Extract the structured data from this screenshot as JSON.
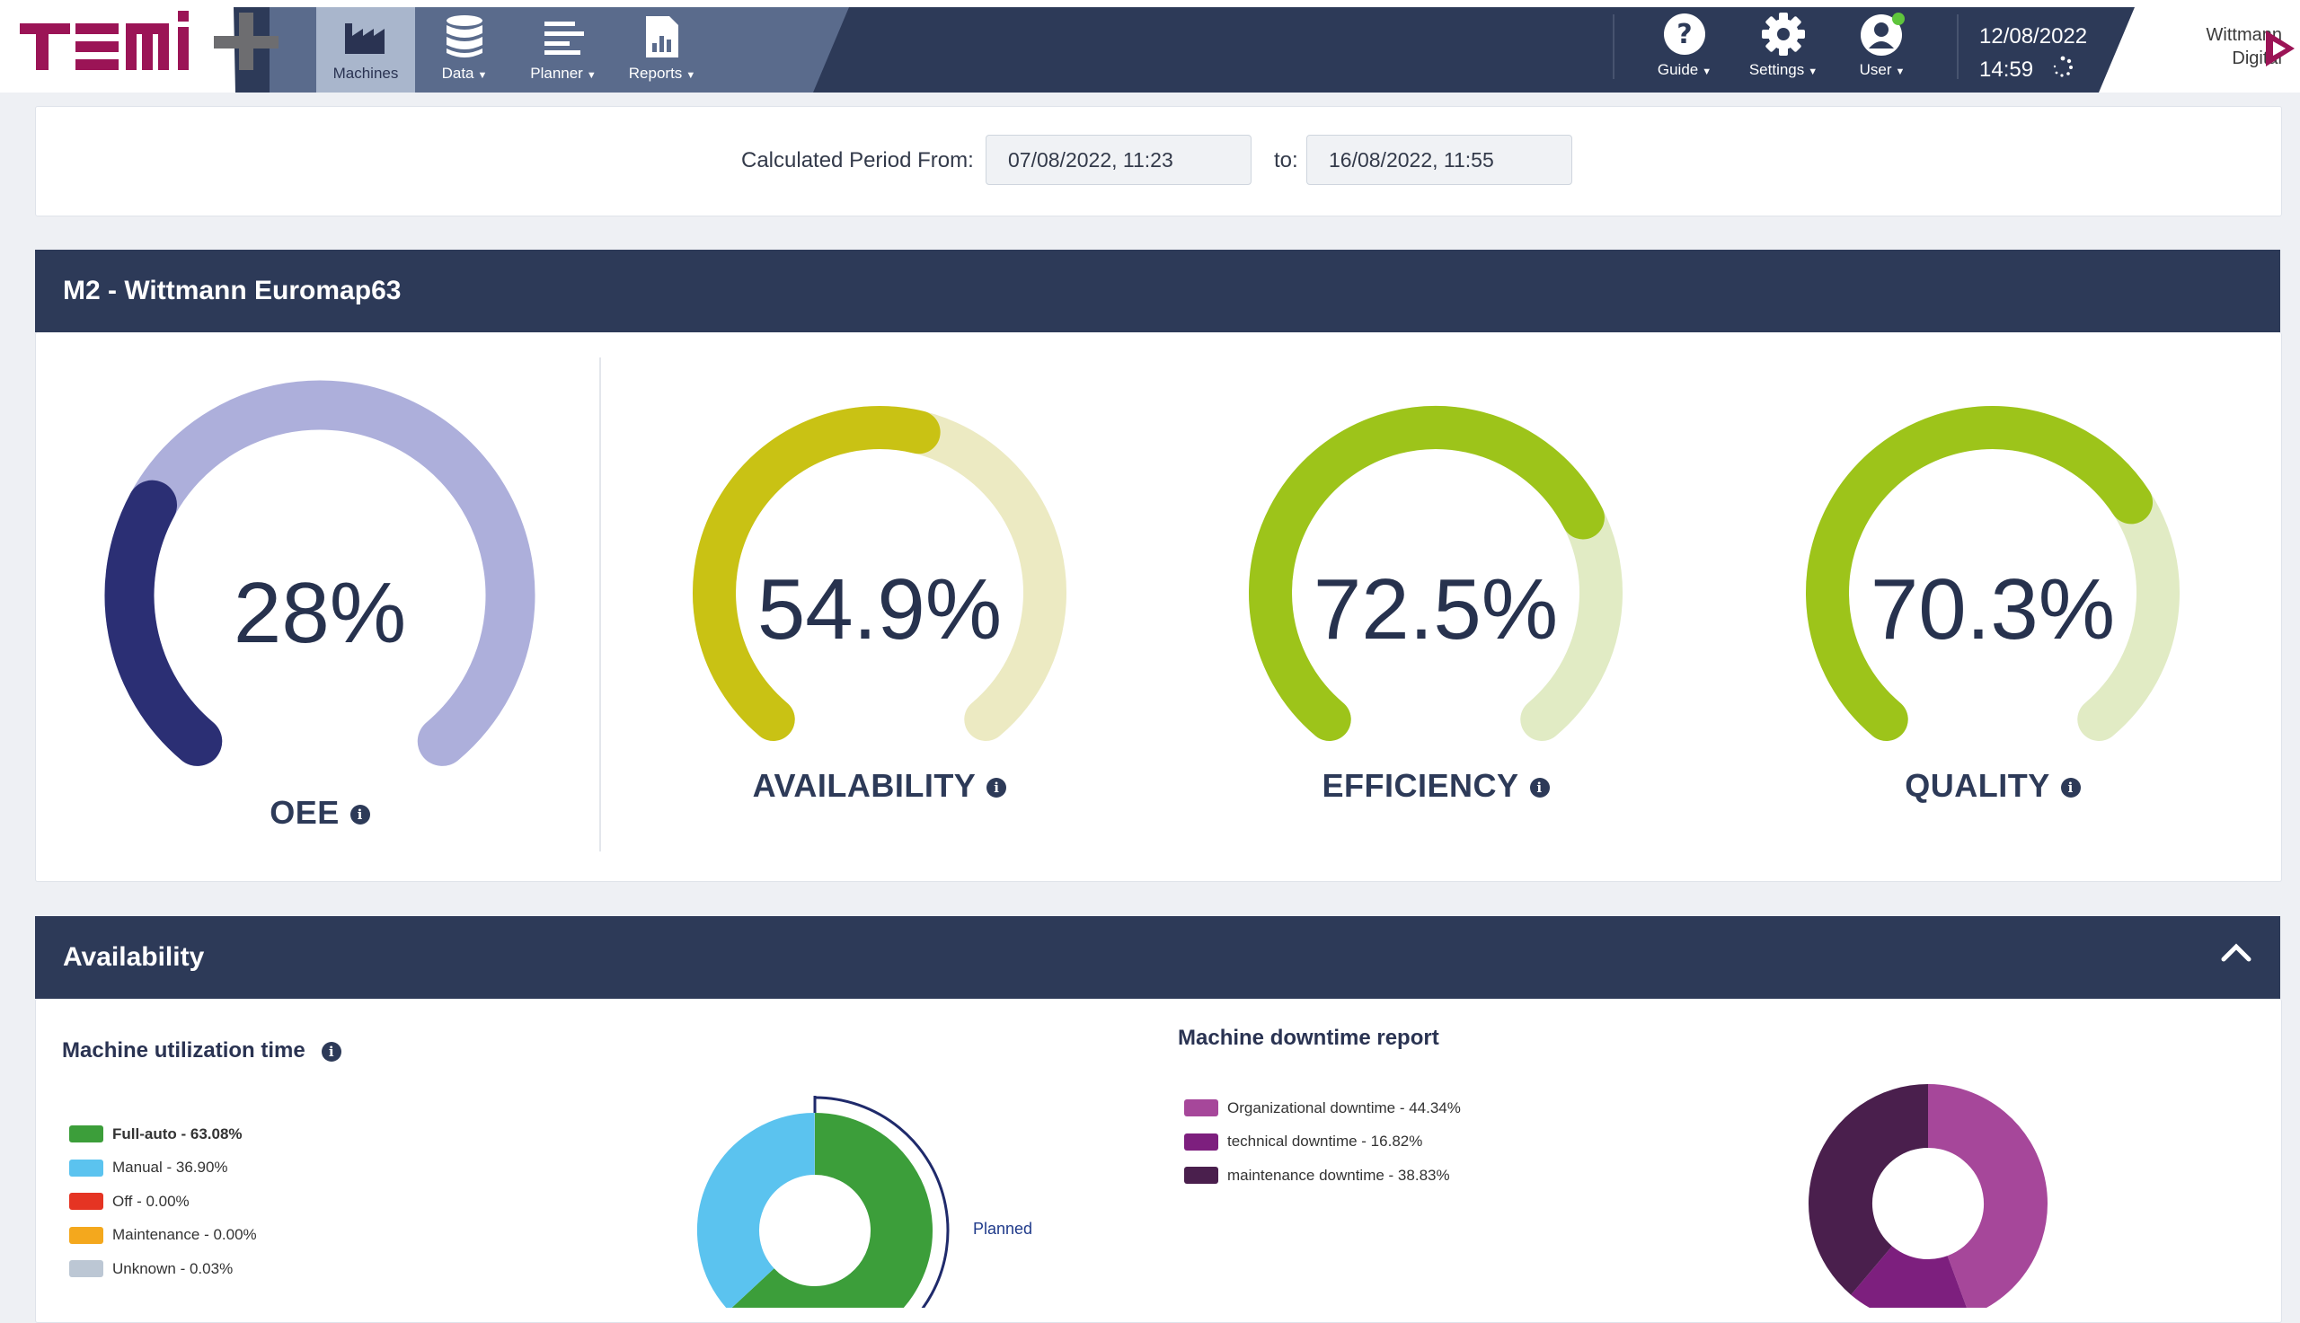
{
  "nav": {
    "items": [
      {
        "label": "Machines",
        "icon": "factory-icon",
        "active": true
      },
      {
        "label": "Data",
        "icon": "database-icon"
      },
      {
        "label": "Planner",
        "icon": "planner-icon"
      },
      {
        "label": "Reports",
        "icon": "report-icon"
      }
    ],
    "right": [
      {
        "label": "Guide",
        "icon": "question-icon"
      },
      {
        "label": "Settings",
        "icon": "gear-icon"
      },
      {
        "label": "User",
        "icon": "user-icon"
      }
    ],
    "date": "12/08/2022",
    "time": "14:59",
    "brand_line1": "Wittmann",
    "brand_line2": "Digital",
    "colors": {
      "bar": "#2d3a58",
      "logo": "#9b1456"
    }
  },
  "period": {
    "label": "Calculated Period From:",
    "from": "07/08/2022, 11:23",
    "to_label": "to:",
    "to": "16/08/2022, 11:55"
  },
  "machine": {
    "title": "M2 - Wittmann Euromap63"
  },
  "gauges": [
    {
      "id": "oee",
      "label": "OEE",
      "value": "28%",
      "fraction": 0.28,
      "color": "#2b2f74",
      "track": "#adafdb"
    },
    {
      "id": "availability",
      "label": "AVAILABILITY",
      "value": "54.9%",
      "fraction": 0.549,
      "color": "#c9c214",
      "track": "#eceac2"
    },
    {
      "id": "efficiency",
      "label": "EFFICIENCY",
      "value": "72.5%",
      "fraction": 0.725,
      "color": "#9dc41a",
      "track": "#e1ebc4"
    },
    {
      "id": "quality",
      "label": "QUALITY",
      "value": "70.3%",
      "fraction": 0.703,
      "color": "#9dc41a",
      "track": "#e1ebc4"
    }
  ],
  "availability": {
    "title": "Availability",
    "utilization": {
      "title": "Machine utilization time",
      "legend": [
        {
          "label": "Full-auto - 63.08%",
          "color": "#3c9e3a",
          "bold": true
        },
        {
          "label": "Manual - 36.90%",
          "color": "#5bc3ef"
        },
        {
          "label": "Off - 0.00%",
          "color": "#e53423"
        },
        {
          "label": "Maintenance - 0.00%",
          "color": "#f4a81d"
        },
        {
          "label": "Unknown - 0.03%",
          "color": "#bcc7d4"
        }
      ],
      "planned_label": "Planned"
    },
    "downtime": {
      "title": "Machine downtime report",
      "legend": [
        {
          "label": "Organizational downtime - 44.34%",
          "color": "#a6479a"
        },
        {
          "label": "technical downtime - 16.82%",
          "color": "#7d1f7e"
        },
        {
          "label": "maintenance downtime - 38.83%",
          "color": "#4a1f4d"
        }
      ]
    }
  },
  "chart_data": [
    {
      "type": "pie",
      "title": "Machine utilization time",
      "categories": [
        "Full-auto",
        "Manual",
        "Off",
        "Maintenance",
        "Unknown"
      ],
      "values": [
        63.08,
        36.9,
        0.0,
        0.0,
        0.03
      ]
    },
    {
      "type": "pie",
      "title": "Machine downtime report",
      "categories": [
        "Organizational downtime",
        "technical downtime",
        "maintenance downtime"
      ],
      "values": [
        44.34,
        16.82,
        38.83
      ]
    }
  ]
}
